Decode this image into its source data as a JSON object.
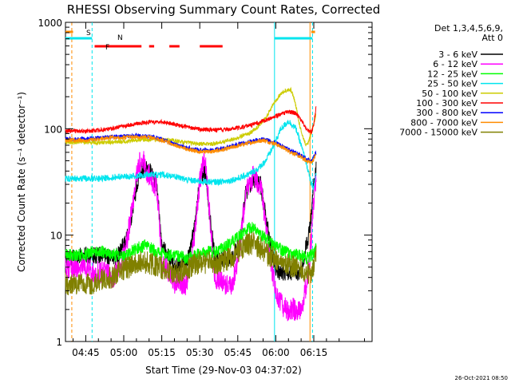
{
  "chart_data": {
    "type": "line",
    "title": "RHESSI Observing Summary Count Rates, Corrected",
    "xlabel": "Start Time (29-Nov-03 04:37:02)",
    "ylabel": "Corrected Count Rate (s⁻¹ detector⁻¹)",
    "yscale": "log",
    "ylim": [
      1,
      1000
    ],
    "xlim_minutes": [
      37,
      158
    ],
    "x_unit": "minutes after 04:00 UT on 29-Nov-03",
    "x_ticks": [
      {
        "label": "04:45",
        "minutes": 45
      },
      {
        "label": "05:00",
        "minutes": 60
      },
      {
        "label": "05:15",
        "minutes": 75
      },
      {
        "label": "05:30",
        "minutes": 90
      },
      {
        "label": "05:45",
        "minutes": 105
      },
      {
        "label": "06:00",
        "minutes": 120
      },
      {
        "label": "06:15",
        "minutes": 135
      }
    ],
    "y_ticks": [
      "1",
      "10",
      "100",
      "1000"
    ],
    "legend_header": [
      "Det 1,3,4,5,6,9,",
      "Att 0"
    ],
    "legend_position": "right",
    "timestamp": "26-Oct-2021 08:50",
    "flags": [
      {
        "label": "S",
        "color": "#ff8c00"
      },
      {
        "label": "N",
        "color": "#00e5ee"
      },
      {
        "label": "F",
        "color": "#ff0000"
      }
    ],
    "series": [
      {
        "name": "3 - 6 keV",
        "color": "#000000",
        "x": [
          37,
          45,
          48,
          52,
          55,
          58,
          61,
          63,
          65,
          67,
          69,
          71,
          73,
          75,
          80,
          85,
          88,
          90,
          92,
          94,
          96,
          100,
          103,
          106,
          108,
          111,
          114,
          116,
          118,
          119,
          120,
          121,
          124,
          128,
          130,
          131,
          132,
          133,
          134,
          135,
          136
        ],
        "y": [
          6,
          6.5,
          6.5,
          6.5,
          6,
          6.5,
          9,
          15,
          28,
          40,
          43,
          38,
          30,
          8,
          5,
          5.5,
          12,
          32,
          40,
          15,
          6,
          6,
          6,
          9,
          24,
          34,
          30,
          15,
          8,
          6,
          5,
          4.5,
          4.5,
          4.5,
          4.5,
          6,
          8,
          10,
          15,
          30,
          45
        ]
      },
      {
        "name": "6 - 12 keV",
        "color": "#ff00ff",
        "x": [
          37,
          45,
          48,
          52,
          55,
          58,
          61,
          63,
          65,
          67,
          69,
          71,
          73,
          75,
          80,
          85,
          88,
          90,
          92,
          94,
          96,
          100,
          103,
          106,
          108,
          111,
          114,
          116,
          118,
          119,
          120,
          121,
          124,
          128,
          130,
          131,
          132,
          133,
          134,
          135,
          136
        ],
        "y": [
          5,
          5,
          4.5,
          4.5,
          4,
          4.5,
          8,
          16,
          35,
          55,
          40,
          34,
          28,
          6,
          3.5,
          3.5,
          10,
          32,
          55,
          15,
          4,
          3.5,
          3.5,
          8,
          25,
          36,
          30,
          12,
          6,
          4,
          3,
          2.5,
          2,
          2,
          2,
          2.5,
          3.5,
          5,
          9,
          22,
          38
        ]
      },
      {
        "name": "12 - 25 keV",
        "color": "#00ff00",
        "x": [
          37,
          45,
          48,
          52,
          55,
          58,
          61,
          65,
          69,
          73,
          77,
          81,
          85,
          89,
          93,
          97,
          101,
          105,
          108,
          111,
          114,
          117,
          119,
          121,
          124,
          126,
          128,
          130,
          132,
          134,
          135,
          136
        ],
        "y": [
          6.5,
          6.5,
          7,
          7,
          6.5,
          6.5,
          6.5,
          7.5,
          8,
          7,
          6.5,
          6.5,
          6,
          6.5,
          7,
          7,
          8,
          9.5,
          11,
          12,
          10,
          9,
          8,
          7.5,
          7,
          6.5,
          6.5,
          6.5,
          6,
          6.5,
          6.5,
          8
        ]
      },
      {
        "name": "25 - 50 keV",
        "color": "#00e5ee",
        "x": [
          37,
          45,
          50,
          55,
          60,
          65,
          70,
          75,
          80,
          85,
          90,
          95,
          100,
          105,
          110,
          113,
          116,
          119,
          122,
          125,
          128,
          130,
          132,
          134,
          135,
          136
        ],
        "y": [
          34,
          34,
          34,
          35,
          35.5,
          36,
          37,
          37,
          35.5,
          33,
          32,
          31.5,
          32,
          34,
          38,
          42,
          50,
          68,
          100,
          118,
          100,
          70,
          48,
          30,
          28,
          40
        ]
      },
      {
        "name": "50 - 100 keV",
        "color": "#cccc00",
        "x": [
          37,
          45,
          50,
          55,
          60,
          65,
          70,
          75,
          80,
          85,
          90,
          95,
          100,
          105,
          110,
          113,
          116,
          119,
          122,
          125,
          126,
          127,
          128,
          129,
          130,
          131,
          132,
          133,
          134,
          135,
          136
        ],
        "y": [
          75,
          75,
          74,
          75,
          76,
          78,
          79,
          79,
          77,
          74,
          72,
          72,
          76,
          82,
          92,
          105,
          125,
          170,
          215,
          235,
          230,
          200,
          160,
          120,
          95,
          80,
          70,
          75,
          90,
          110,
          140
        ]
      },
      {
        "name": "100 - 300 keV",
        "color": "#ff0000",
        "x": [
          37,
          45,
          50,
          55,
          60,
          65,
          70,
          75,
          80,
          85,
          90,
          95,
          100,
          105,
          110,
          115,
          120,
          125,
          128,
          130,
          132,
          134,
          135,
          136
        ],
        "y": [
          95,
          95,
          97,
          100,
          106,
          112,
          115,
          116,
          110,
          103,
          99,
          97,
          98,
          102,
          108,
          118,
          132,
          145,
          140,
          120,
          100,
          92,
          110,
          165
        ]
      },
      {
        "name": "300 - 800 keV",
        "color": "#0000ff",
        "x": [
          37,
          45,
          50,
          55,
          60,
          65,
          70,
          75,
          80,
          85,
          90,
          95,
          100,
          105,
          110,
          115,
          120,
          125,
          130,
          132,
          134,
          135,
          136
        ],
        "y": [
          80,
          80,
          82,
          84,
          85,
          86,
          85,
          80,
          72,
          66,
          63,
          63,
          66,
          71,
          76,
          80,
          74,
          64,
          56,
          52,
          50,
          55,
          60
        ]
      },
      {
        "name": "800 - 7000 keV",
        "color": "#ff8c00",
        "x": [
          37,
          45,
          50,
          55,
          60,
          65,
          70,
          75,
          80,
          85,
          90,
          95,
          100,
          105,
          110,
          115,
          120,
          125,
          130,
          132,
          134,
          135,
          136
        ],
        "y": [
          78,
          78,
          80,
          82,
          83,
          84,
          83,
          78,
          70,
          64,
          61,
          61,
          64,
          69,
          74,
          78,
          72,
          62,
          54,
          50,
          48,
          52,
          58
        ]
      },
      {
        "name": "7000 - 15000 keV",
        "color": "#808000",
        "x": [
          37,
          45,
          48,
          52,
          55,
          58,
          62,
          66,
          70,
          74,
          78,
          82,
          86,
          90,
          94,
          98,
          102,
          105,
          108,
          111,
          114,
          117,
          120,
          123,
          126,
          129,
          132,
          134,
          135,
          136
        ],
        "y": [
          3.5,
          3.5,
          3.5,
          4,
          4,
          4.5,
          5,
          5.5,
          5.5,
          5,
          4.5,
          4.5,
          5,
          5.5,
          5.5,
          5.5,
          6,
          7,
          8,
          8.5,
          7.5,
          6.5,
          6,
          5.5,
          5,
          5,
          4.5,
          4.5,
          5,
          7
        ]
      }
    ]
  }
}
